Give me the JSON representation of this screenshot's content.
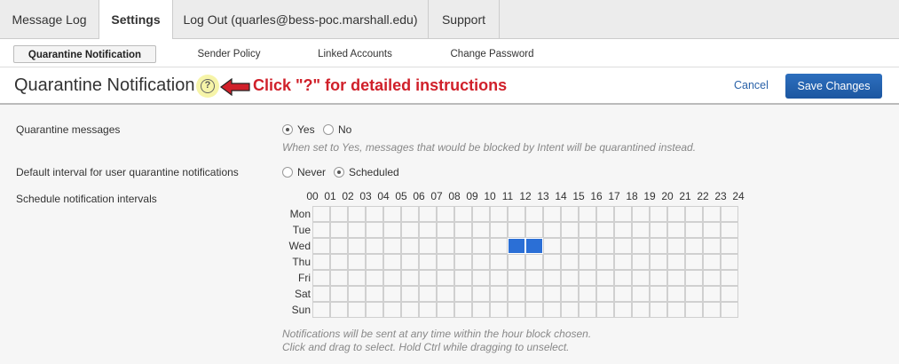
{
  "tabs": [
    {
      "label": "Message Log"
    },
    {
      "label": "Settings",
      "active": true
    },
    {
      "label": "Log Out (quarles@bess-poc.marshall.edu)"
    },
    {
      "label": "Support"
    }
  ],
  "subnav": [
    {
      "label": "Quarantine Notification",
      "active": true
    },
    {
      "label": "Sender Policy"
    },
    {
      "label": "Linked Accounts"
    },
    {
      "label": "Change Password"
    }
  ],
  "header": {
    "title": "Quarantine Notification",
    "help_icon": "question-circle-icon",
    "help_label": "?",
    "annotation": "Click \"?\" for detailed instructions",
    "annotation_color": "#d0202a",
    "cancel": "Cancel",
    "save": "Save Changes"
  },
  "quarantine": {
    "label": "Quarantine messages",
    "yes": "Yes",
    "no": "No",
    "selected": "Yes",
    "hint": "When set to Yes, messages that would be blocked by Intent will be quarantined instead."
  },
  "interval": {
    "label": "Default interval for user quarantine notifications",
    "never": "Never",
    "scheduled": "Scheduled",
    "selected": "Scheduled"
  },
  "schedule": {
    "label": "Schedule notification intervals",
    "hours": [
      "00",
      "01",
      "02",
      "03",
      "04",
      "05",
      "06",
      "07",
      "08",
      "09",
      "10",
      "11",
      "12",
      "13",
      "14",
      "15",
      "16",
      "17",
      "18",
      "19",
      "20",
      "21",
      "22",
      "23",
      "24"
    ],
    "days": [
      "Mon",
      "Tue",
      "Wed",
      "Thu",
      "Fri",
      "Sat",
      "Sun"
    ],
    "selected": [
      {
        "day": "Wed",
        "hour": 11
      },
      {
        "day": "Wed",
        "hour": 12
      }
    ],
    "selected_color": "#2b6fd6",
    "hint1": "Notifications will be sent at any time within the hour block chosen.",
    "hint2": "Click and drag to select. Hold Ctrl while dragging to unselect."
  }
}
